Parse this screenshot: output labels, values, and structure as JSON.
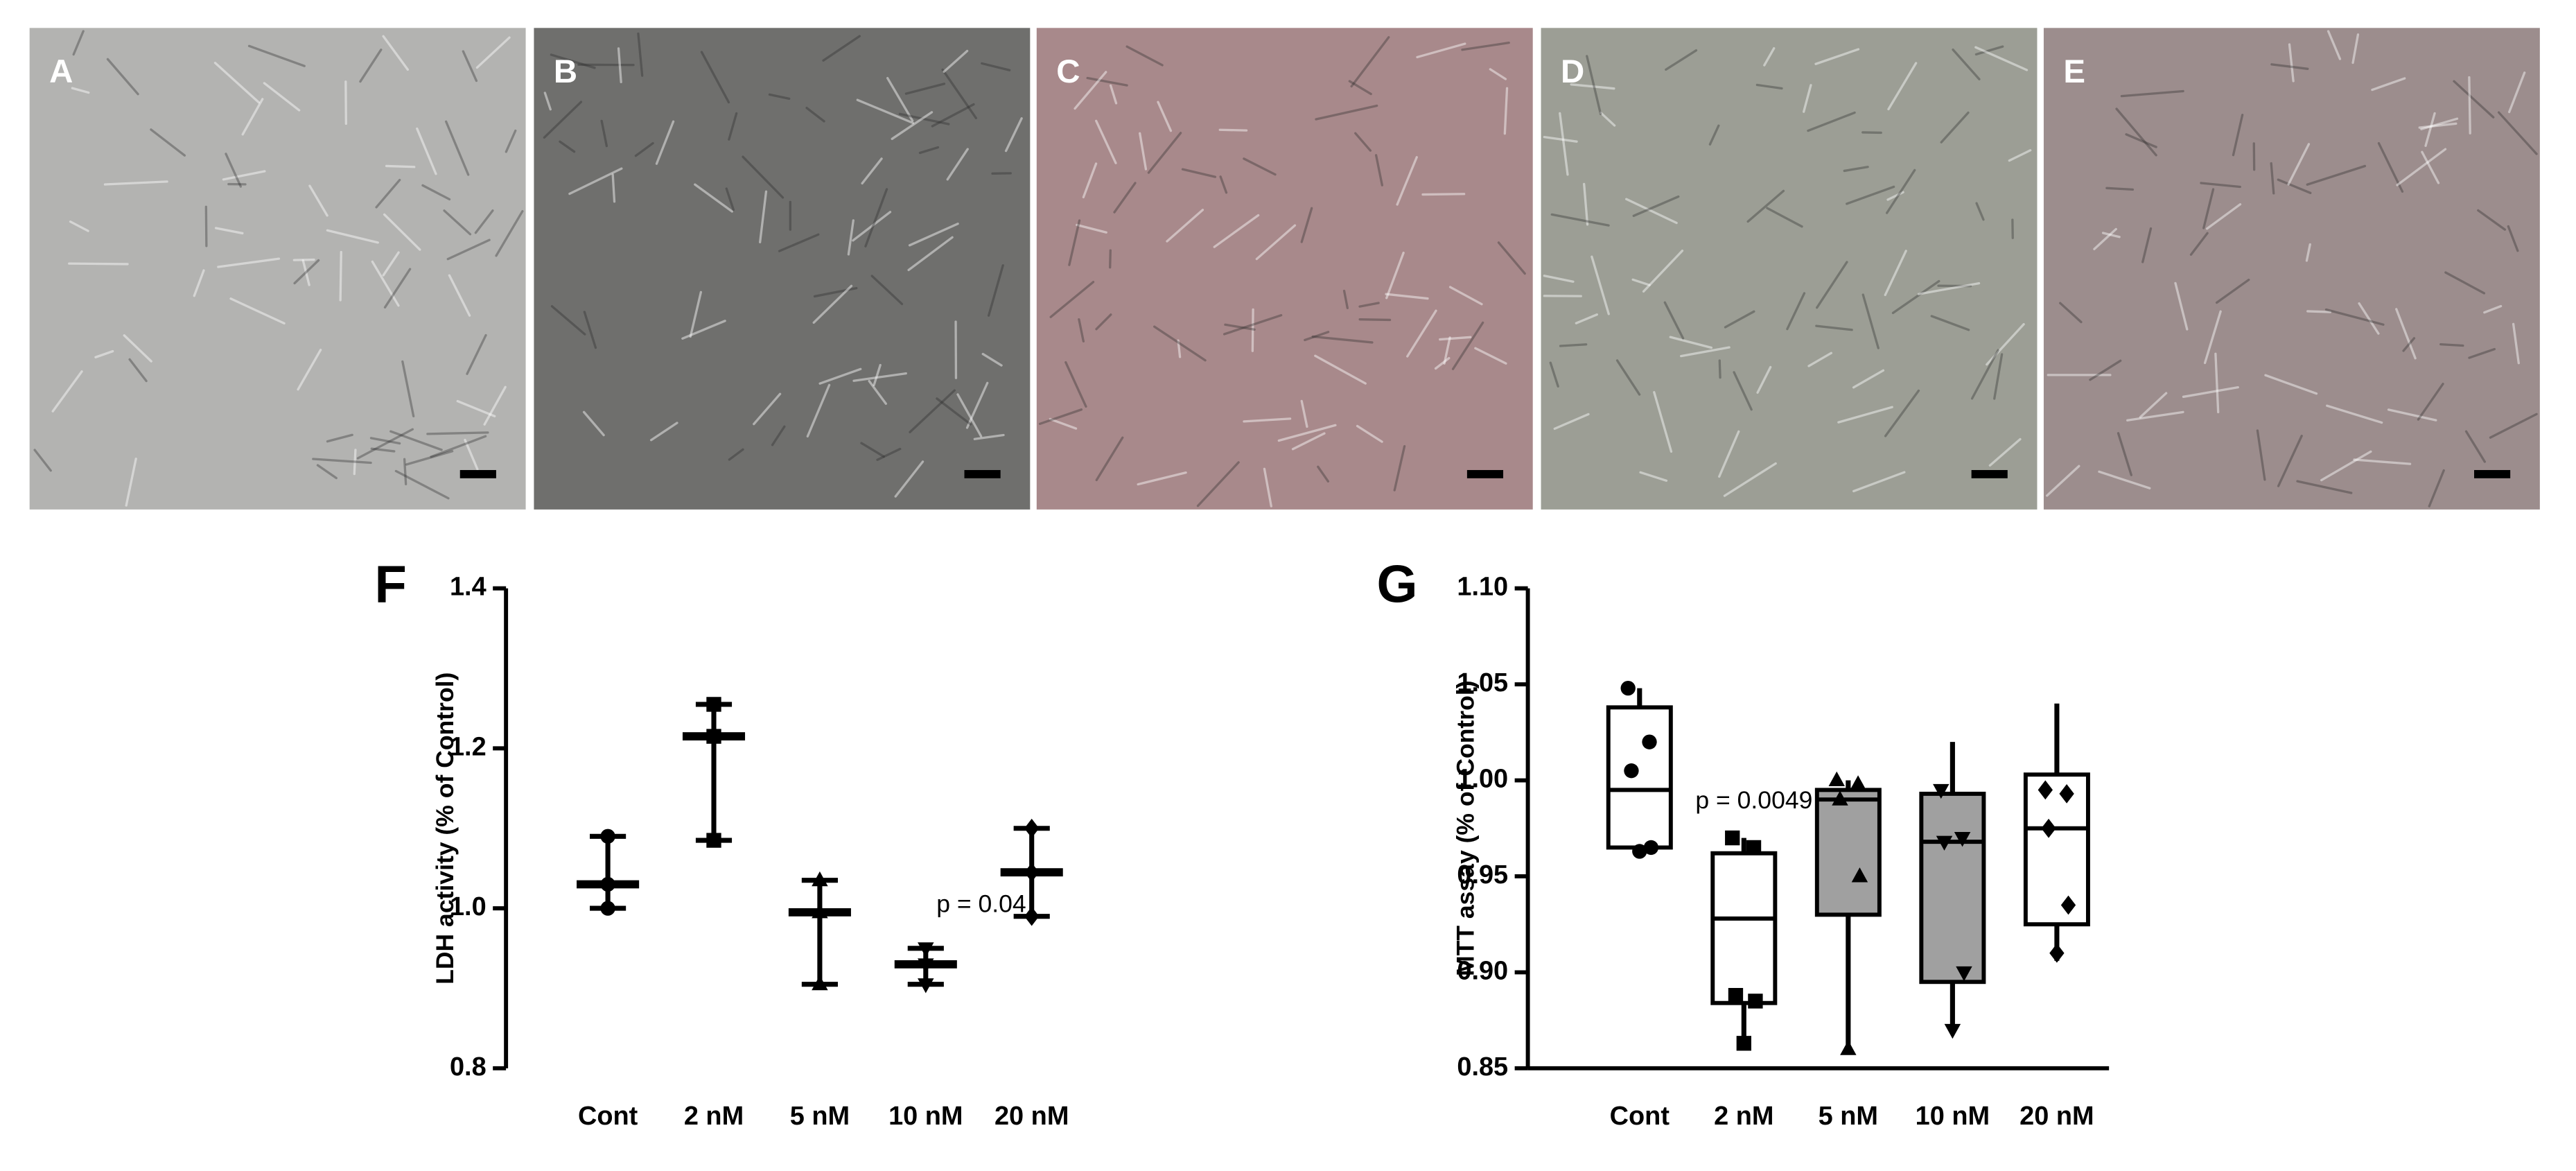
{
  "panels": [
    {
      "label": "A",
      "color": "#b3b3b1"
    },
    {
      "label": "B",
      "color": "#6f6f6d"
    },
    {
      "label": "C",
      "color": "#a8898b"
    },
    {
      "label": "D",
      "color": "#9c9e95"
    },
    {
      "label": "E",
      "color": "#9c8d8d"
    }
  ],
  "chart_data": [
    {
      "type": "range",
      "panel_label": "F",
      "y_label": "LDH activity (% of Control)",
      "annotation": "p = 0.04",
      "categories": [
        "Cont",
        "2 nM",
        "5 nM",
        "10 nM",
        "20 nM"
      ],
      "markers": [
        "circle",
        "square",
        "triangle",
        "triangle-down",
        "diamond"
      ],
      "min": [
        1.0,
        1.085,
        0.905,
        0.905,
        0.99
      ],
      "median": [
        1.03,
        1.215,
        0.995,
        0.93,
        1.045
      ],
      "max": [
        1.09,
        1.255,
        1.035,
        0.95,
        1.1
      ],
      "points": [
        [
          1.0,
          1.03,
          1.09
        ],
        [
          1.085,
          1.215,
          1.255
        ],
        [
          0.905,
          0.995,
          1.035
        ],
        [
          0.905,
          0.93,
          0.95
        ],
        [
          0.99,
          1.045,
          1.1
        ]
      ],
      "ylim": [
        0.8,
        1.4
      ],
      "yticks": [
        0.8,
        {
          "value": 1.0,
          "label": "1.0"
        },
        1.2,
        1.4
      ],
      "color": "#000000"
    },
    {
      "type": "box",
      "panel_label": "G",
      "y_label": "MTT assay (% of Control)",
      "annotation": "p = 0.0049",
      "categories": [
        "Cont",
        "2 nM",
        "5 nM",
        "10 nM",
        "20 nM"
      ],
      "markers": [
        "circle",
        "square",
        "triangle",
        "triangle-down",
        "diamond"
      ],
      "box_colors": [
        "#ffffff",
        "#ffffff",
        "#a0a0a0",
        "#a0a0a0",
        "#ffffff"
      ],
      "min": [
        0.962,
        0.862,
        0.86,
        0.87,
        0.906
      ],
      "q1": [
        0.965,
        0.884,
        0.93,
        0.895,
        0.925
      ],
      "median": [
        0.995,
        0.928,
        0.99,
        0.968,
        0.975
      ],
      "q3": [
        1.038,
        0.962,
        0.995,
        0.993,
        1.003
      ],
      "max": [
        1.048,
        0.97,
        1.0,
        1.02,
        1.04
      ],
      "points": [
        [
          1.048,
          1.02,
          1.005,
          0.965,
          0.963
        ],
        [
          0.97,
          0.965,
          0.888,
          0.885,
          0.863
        ],
        [
          1.0,
          0.998,
          0.99,
          0.95,
          0.86
        ],
        [
          0.995,
          0.97,
          0.968,
          0.9,
          0.87
        ],
        [
          0.995,
          0.993,
          0.975,
          0.935,
          0.91
        ]
      ],
      "ylim": [
        0.85,
        1.1
      ],
      "yticks": [
        0.85,
        {
          "value": 0.9,
          "label": "0.90"
        },
        0.95,
        {
          "value": 1.0,
          "label": "1.00"
        },
        1.05,
        {
          "value": 1.1,
          "label": "1.10"
        }
      ],
      "color": "#000000"
    }
  ]
}
